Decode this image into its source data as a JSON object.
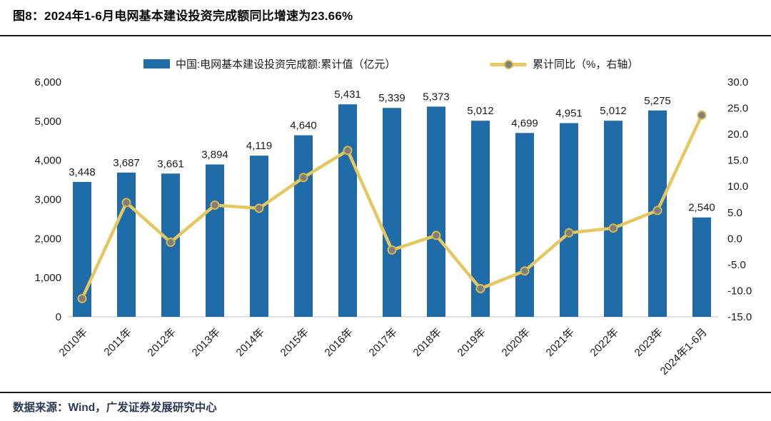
{
  "figure": {
    "title": "图8：2024年1-6月电网基本建设投资完成额同比增速为23.66%",
    "source": "数据来源：Wind，广发证券发展研究中心"
  },
  "legend": {
    "bar": {
      "label": "中国:电网基本建设投资完成额:累计值（亿元）",
      "color": "#1F6CA8"
    },
    "line": {
      "label": "累计同比（%，右轴）",
      "color": "#E6C75F"
    }
  },
  "colors": {
    "bar": "#1F6CA8",
    "line": "#E6C75F",
    "marker_fill": "#7E7E7E",
    "marker_stroke": "#D8B74D",
    "axis_text": "#1a1a1a",
    "baseline": "#D9D9D9"
  },
  "chart_data": {
    "type": "bar+line",
    "title": "2024年1-6月电网基本建设投资完成额同比增速为23.66%",
    "categories": [
      "2010年",
      "2011年",
      "2012年",
      "2013年",
      "2014年",
      "2015年",
      "2016年",
      "2017年",
      "2018年",
      "2019年",
      "2020年",
      "2021年",
      "2022年",
      "2023年",
      "2024年1-6月"
    ],
    "series": [
      {
        "name": "中国:电网基本建设投资完成额:累计值（亿元）",
        "type": "bar",
        "axis": "left",
        "values": [
          3448,
          3687,
          3661,
          3894,
          4119,
          4640,
          5431,
          5339,
          5373,
          5012,
          4699,
          4951,
          5012,
          5275,
          2540
        ],
        "labels": [
          "3,448",
          "3,687",
          "3,661",
          "3,894",
          "4,119",
          "4,640",
          "5,431",
          "5,339",
          "5,373",
          "5,012",
          "4,699",
          "4,951",
          "5,012",
          "5,275",
          "2,540"
        ]
      },
      {
        "name": "累计同比（%，右轴）",
        "type": "line",
        "axis": "right",
        "values": [
          -11.5,
          6.9,
          -0.7,
          6.4,
          5.8,
          11.7,
          16.9,
          -2.2,
          0.6,
          -9.6,
          -6.2,
          1.1,
          2.0,
          5.4,
          23.66
        ]
      }
    ],
    "left_axis": {
      "min": 0,
      "max": 6000,
      "step": 1000,
      "tick_labels": [
        "0",
        "1,000",
        "2,000",
        "3,000",
        "4,000",
        "5,000",
        "6,000"
      ]
    },
    "right_axis": {
      "min": -15,
      "max": 30,
      "step": 5,
      "tick_labels": [
        "-15.0",
        "-10.0",
        "-5.0",
        "0.0",
        "5.0",
        "10.0",
        "15.0",
        "20.0",
        "25.0",
        "30.0"
      ]
    },
    "grid": false,
    "legend_position": "top"
  }
}
